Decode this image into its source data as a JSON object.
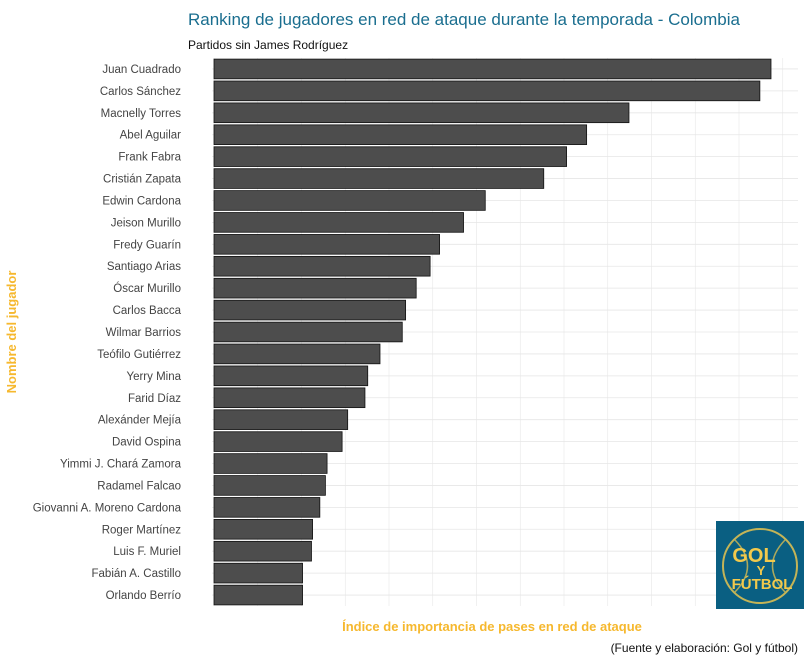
{
  "chart_data": {
    "type": "bar",
    "orientation": "horizontal",
    "title": "Ranking de jugadores en red de ataque durante la temporada - Colombia",
    "subtitle": "Partidos sin James Rodríguez",
    "xlabel": "Índice de importancia de pases en red de ataque",
    "ylabel": "Nombre del jugador",
    "caption": "(Fuente y elaboración: Gol y fútbol)",
    "x_ticks_shown": false,
    "grid": true,
    "xlim": [
      0,
      1
    ],
    "categories": [
      "Juan Cuadrado",
      "Carlos Sánchez",
      "Macnelly Torres",
      "Abel Aguilar",
      "Frank Fabra",
      "Cristián Zapata",
      "Edwin Cardona",
      "Jeison Murillo",
      "Fredy Guarín",
      "Santiago Arias",
      "Óscar  Murillo",
      "Carlos Bacca",
      "Wilmar Barrios",
      "Teófilo Gutiérrez",
      "Yerry Mina",
      "Farid Díaz",
      "Alexánder Mejía",
      "David Ospina",
      "Yimmi J. Chará Zamora",
      "Radamel Falcao",
      "Giovanni A. Moreno Cardona",
      "Roger Martínez",
      "Luis F. Muriel",
      "Fabián A. Castillo",
      "Orlando Berrío"
    ],
    "values": [
      1.0,
      0.98,
      0.745,
      0.669,
      0.633,
      0.592,
      0.487,
      0.448,
      0.405,
      0.388,
      0.363,
      0.344,
      0.338,
      0.298,
      0.276,
      0.271,
      0.24,
      0.23,
      0.203,
      0.2,
      0.19,
      0.177,
      0.175,
      0.159,
      0.159
    ]
  },
  "logo": {
    "line1": "GOL",
    "line2": "Y",
    "line3": "FÚTBOL",
    "background_color": "#0a5f82",
    "text_color": "#f2c94c"
  },
  "colors": {
    "bar_fill": "#4d4d4d",
    "bar_stroke": "#111111",
    "title": "#1a6e8f",
    "axis_label": "#f6b82e",
    "grid": "#e6e6e6"
  }
}
